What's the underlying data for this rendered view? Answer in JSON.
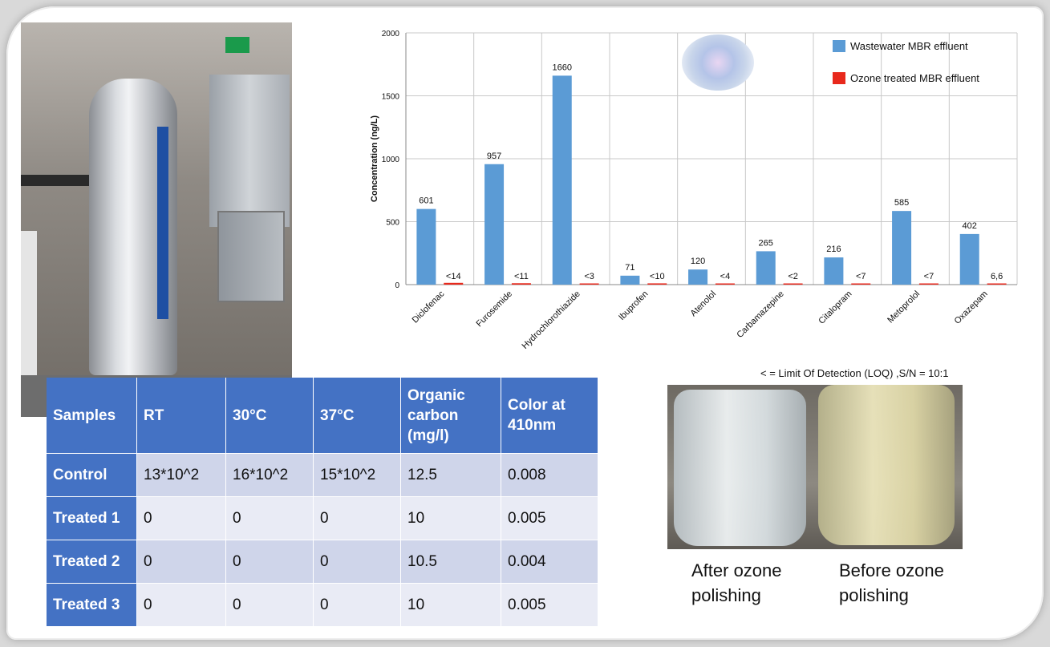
{
  "chart_data": {
    "type": "bar",
    "ylabel": "Concentration  (ng/L)",
    "ylim": [
      0,
      2000
    ],
    "yticks": [
      0,
      500,
      1000,
      1500,
      2000
    ],
    "grid": true,
    "legend_position": "top-right",
    "categories": [
      "Diclofenac",
      "Furosemide",
      "Hydrochlorothiazide",
      "Ibuprofen",
      "Atenolol",
      "Carbamazepine",
      "Citalopram",
      "Metoprolol",
      "Oxazepam"
    ],
    "series": [
      {
        "name": "Wastewater MBR effluent",
        "color": "#5b9bd5",
        "values": [
          601,
          957,
          1660,
          71,
          120,
          265,
          216,
          585,
          402
        ],
        "labels": [
          "601",
          "957",
          "1660",
          "71",
          "120",
          "265",
          "216",
          "585",
          "402"
        ]
      },
      {
        "name": "Ozone treated MBR effluent",
        "color": "#e8291c",
        "values": [
          14,
          11,
          3,
          10,
          4,
          2,
          7,
          7,
          6.6
        ],
        "labels": [
          "<14",
          "<11",
          "<3",
          "<10",
          "<4",
          "<2",
          "<7",
          "<7",
          "6,6"
        ]
      }
    ],
    "note": "< = Limit Of Detection (LOQ) ,S/N = 10:1"
  },
  "table": {
    "headers": [
      "Samples",
      "RT",
      "30°C",
      "37°C",
      "Organic carbon (mg/l)",
      "Color at 410nm"
    ],
    "rows": [
      [
        "Control",
        "13*10^2",
        "16*10^2",
        "15*10^2",
        "12.5",
        "0.008"
      ],
      [
        "Treated 1",
        "0",
        "0",
        "0",
        "10",
        "0.005"
      ],
      [
        "Treated 2",
        "0",
        "0",
        "0",
        "10.5",
        "0.004"
      ],
      [
        "Treated 3",
        "0",
        "0",
        "0",
        "10",
        "0.005"
      ]
    ]
  },
  "captions": {
    "after": "After ozone polishing",
    "before": "Before ozone polishing"
  }
}
